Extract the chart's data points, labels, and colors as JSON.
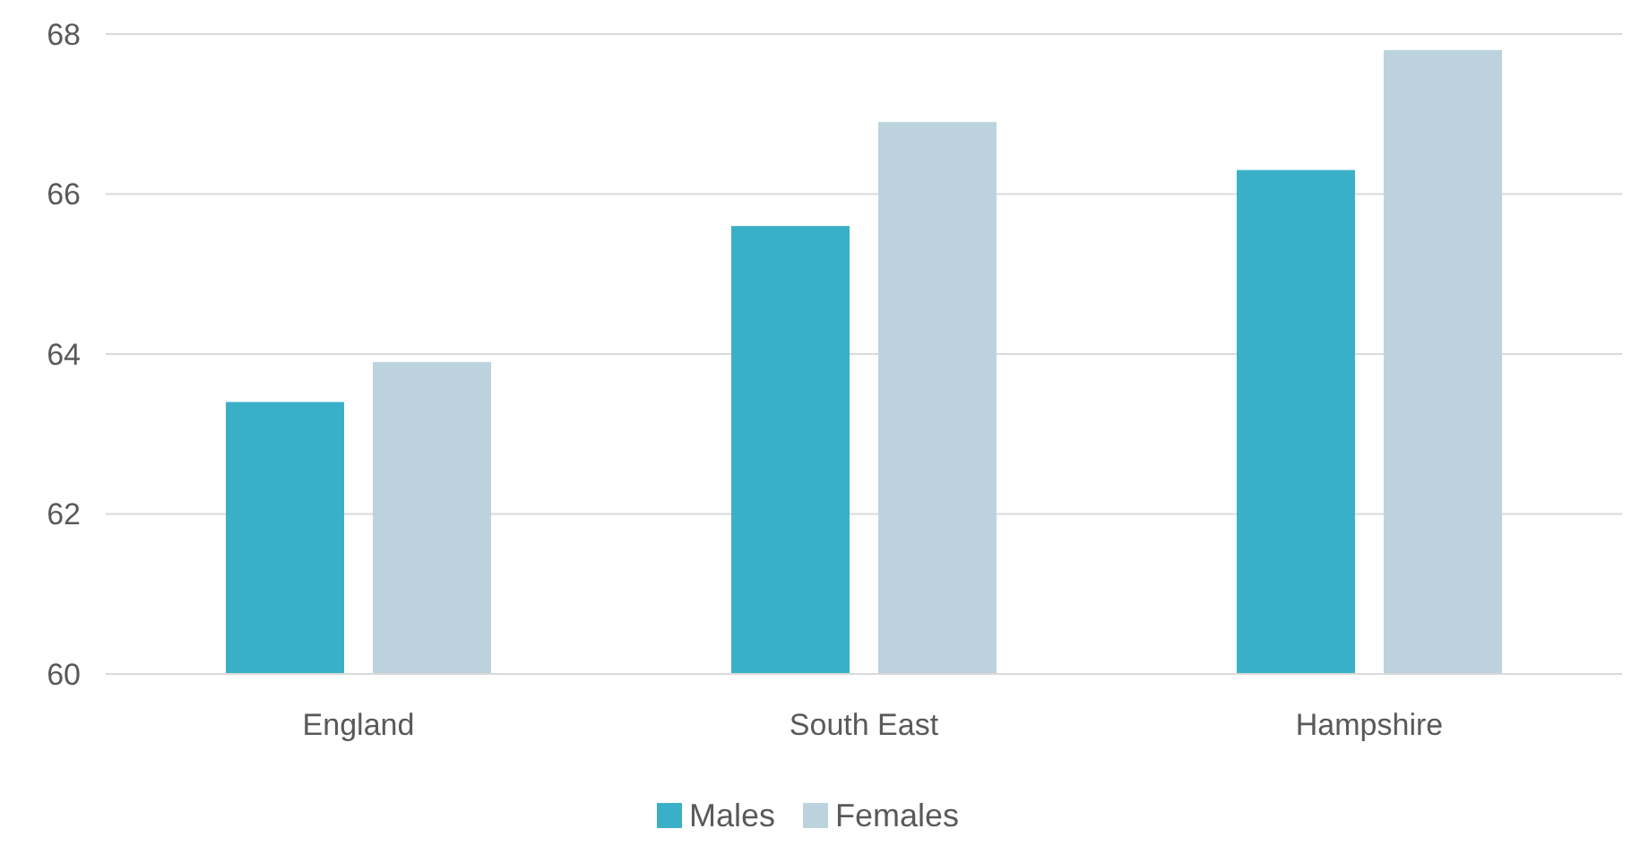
{
  "chart_data": {
    "type": "bar",
    "categories": [
      "England",
      "South East",
      "Hampshire"
    ],
    "series": [
      {
        "name": "Males",
        "color": "#3ab0c8",
        "values": [
          63.4,
          65.6,
          66.3
        ]
      },
      {
        "name": "Females",
        "color": "#bcd3dd",
        "values": [
          63.9,
          66.9,
          67.8
        ]
      }
    ],
    "ylim": [
      60,
      68
    ],
    "yticks": [
      60,
      62,
      64,
      66,
      68
    ],
    "grid": "y",
    "legend": "bottom"
  }
}
